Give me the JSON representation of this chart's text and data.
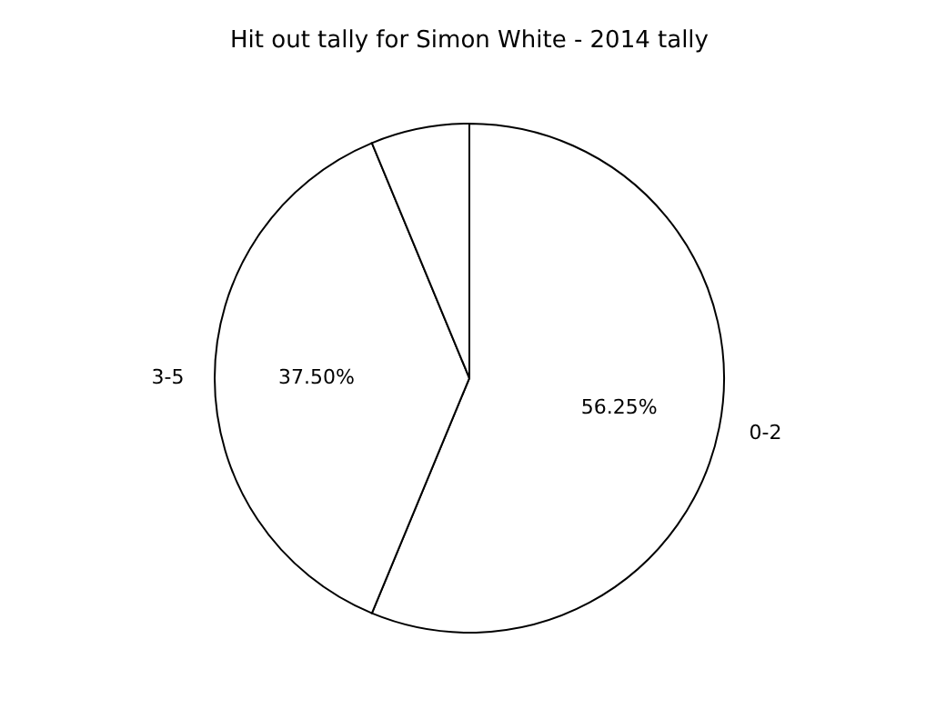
{
  "chart_data": {
    "type": "pie",
    "title": "Hit out tally for Simon White - 2014 tally",
    "categories": [
      "0-2",
      "3-5",
      null
    ],
    "values": [
      56.25,
      37.5,
      6.25
    ],
    "value_labels": [
      "56.25%",
      "37.50%",
      null
    ],
    "colors": [
      "#ffffff",
      "#ffffff",
      "#ffffff"
    ]
  }
}
